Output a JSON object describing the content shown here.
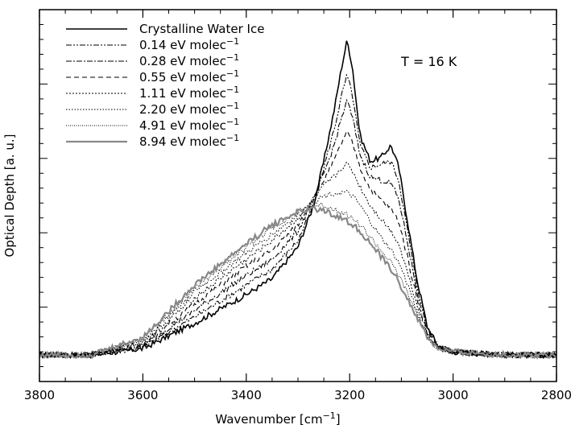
{
  "chart_data": {
    "type": "line",
    "title": "",
    "xlabel": "Wavenumber [cm",
    "xlabel_sup": "−1",
    "xlabel_suffix": "]",
    "ylabel": "Optical Depth [a. u.]",
    "xlim": [
      3800,
      2800
    ],
    "ylim": [
      0,
      1
    ],
    "x_inverted": true,
    "x_ticks": [
      3800,
      3600,
      3400,
      3200,
      3000,
      2800
    ],
    "y_ticks_labeled": false,
    "grid": false,
    "legend_position": "top-left",
    "annotation": "T = 16 K",
    "series": [
      {
        "name": "Crystalline Water Ice",
        "name_sup": "",
        "dash": "solid",
        "color": "#000000",
        "width": 1.6,
        "points": [
          [
            3800,
            0.01
          ],
          [
            3700,
            0.01
          ],
          [
            3600,
            0.03
          ],
          [
            3500,
            0.11
          ],
          [
            3400,
            0.2
          ],
          [
            3350,
            0.25
          ],
          [
            3300,
            0.35
          ],
          [
            3270,
            0.48
          ],
          [
            3250,
            0.62
          ],
          [
            3230,
            0.78
          ],
          [
            3215,
            0.92
          ],
          [
            3205,
            1.0
          ],
          [
            3195,
            0.92
          ],
          [
            3180,
            0.7
          ],
          [
            3160,
            0.62
          ],
          [
            3140,
            0.63
          ],
          [
            3120,
            0.67
          ],
          [
            3105,
            0.6
          ],
          [
            3090,
            0.45
          ],
          [
            3070,
            0.25
          ],
          [
            3050,
            0.1
          ],
          [
            3030,
            0.04
          ],
          [
            3000,
            0.02
          ],
          [
            2900,
            0.01
          ],
          [
            2800,
            0.01
          ]
        ]
      },
      {
        "name": "0.14 eV molec",
        "name_sup": "−1",
        "dash": "7,2,2,2,2,2",
        "color": "#000000",
        "width": 1.1,
        "points": [
          [
            3800,
            0.01
          ],
          [
            3700,
            0.01
          ],
          [
            3600,
            0.035
          ],
          [
            3500,
            0.13
          ],
          [
            3400,
            0.23
          ],
          [
            3350,
            0.28
          ],
          [
            3300,
            0.37
          ],
          [
            3270,
            0.48
          ],
          [
            3250,
            0.6
          ],
          [
            3230,
            0.72
          ],
          [
            3215,
            0.83
          ],
          [
            3205,
            0.89
          ],
          [
            3195,
            0.83
          ],
          [
            3180,
            0.67
          ],
          [
            3160,
            0.6
          ],
          [
            3140,
            0.61
          ],
          [
            3120,
            0.62
          ],
          [
            3105,
            0.56
          ],
          [
            3090,
            0.42
          ],
          [
            3070,
            0.23
          ],
          [
            3050,
            0.1
          ],
          [
            3030,
            0.04
          ],
          [
            3000,
            0.02
          ],
          [
            2900,
            0.01
          ],
          [
            2800,
            0.01
          ]
        ]
      },
      {
        "name": "0.28 eV molec",
        "name_sup": "−1",
        "dash": "7,2,2,2",
        "color": "#000000",
        "width": 1.1,
        "points": [
          [
            3800,
            0.01
          ],
          [
            3700,
            0.01
          ],
          [
            3600,
            0.04
          ],
          [
            3500,
            0.15
          ],
          [
            3400,
            0.26
          ],
          [
            3350,
            0.31
          ],
          [
            3300,
            0.4
          ],
          [
            3270,
            0.5
          ],
          [
            3250,
            0.58
          ],
          [
            3230,
            0.67
          ],
          [
            3215,
            0.76
          ],
          [
            3205,
            0.81
          ],
          [
            3195,
            0.76
          ],
          [
            3180,
            0.64
          ],
          [
            3160,
            0.57
          ],
          [
            3140,
            0.56
          ],
          [
            3120,
            0.55
          ],
          [
            3105,
            0.5
          ],
          [
            3090,
            0.38
          ],
          [
            3070,
            0.21
          ],
          [
            3050,
            0.09
          ],
          [
            3030,
            0.04
          ],
          [
            3000,
            0.02
          ],
          [
            2900,
            0.01
          ],
          [
            2800,
            0.01
          ]
        ]
      },
      {
        "name": "0.55 eV molec",
        "name_sup": "−1",
        "dash": "6,4",
        "color": "#000000",
        "width": 1.1,
        "points": [
          [
            3800,
            0.01
          ],
          [
            3700,
            0.01
          ],
          [
            3600,
            0.045
          ],
          [
            3500,
            0.17
          ],
          [
            3400,
            0.29
          ],
          [
            3350,
            0.34
          ],
          [
            3300,
            0.42
          ],
          [
            3270,
            0.5
          ],
          [
            3250,
            0.56
          ],
          [
            3230,
            0.62
          ],
          [
            3215,
            0.68
          ],
          [
            3205,
            0.71
          ],
          [
            3195,
            0.68
          ],
          [
            3180,
            0.6
          ],
          [
            3160,
            0.53
          ],
          [
            3140,
            0.5
          ],
          [
            3120,
            0.47
          ],
          [
            3105,
            0.43
          ],
          [
            3090,
            0.33
          ],
          [
            3070,
            0.19
          ],
          [
            3050,
            0.08
          ],
          [
            3030,
            0.035
          ],
          [
            3000,
            0.02
          ],
          [
            2900,
            0.01
          ],
          [
            2800,
            0.01
          ]
        ]
      },
      {
        "name": "1.11 eV molec",
        "name_sup": "−1",
        "dash": "2,2",
        "color": "#000000",
        "width": 1.0,
        "points": [
          [
            3800,
            0.01
          ],
          [
            3700,
            0.01
          ],
          [
            3600,
            0.05
          ],
          [
            3500,
            0.19
          ],
          [
            3400,
            0.31
          ],
          [
            3350,
            0.37
          ],
          [
            3300,
            0.44
          ],
          [
            3270,
            0.5
          ],
          [
            3250,
            0.54
          ],
          [
            3230,
            0.57
          ],
          [
            3215,
            0.6
          ],
          [
            3205,
            0.61
          ],
          [
            3195,
            0.59
          ],
          [
            3180,
            0.54
          ],
          [
            3160,
            0.48
          ],
          [
            3140,
            0.44
          ],
          [
            3120,
            0.4
          ],
          [
            3105,
            0.36
          ],
          [
            3090,
            0.28
          ],
          [
            3070,
            0.17
          ],
          [
            3050,
            0.08
          ],
          [
            3030,
            0.035
          ],
          [
            3000,
            0.02
          ],
          [
            2900,
            0.01
          ],
          [
            2800,
            0.01
          ]
        ]
      },
      {
        "name": "2.20 eV molec",
        "name_sup": "−1",
        "dash": "1.5,2",
        "color": "#000000",
        "width": 1.0,
        "points": [
          [
            3800,
            0.01
          ],
          [
            3700,
            0.01
          ],
          [
            3600,
            0.055
          ],
          [
            3500,
            0.21
          ],
          [
            3400,
            0.33
          ],
          [
            3350,
            0.39
          ],
          [
            3300,
            0.45
          ],
          [
            3270,
            0.49
          ],
          [
            3250,
            0.51
          ],
          [
            3230,
            0.52
          ],
          [
            3215,
            0.52
          ],
          [
            3205,
            0.52
          ],
          [
            3195,
            0.51
          ],
          [
            3180,
            0.48
          ],
          [
            3160,
            0.43
          ],
          [
            3140,
            0.38
          ],
          [
            3120,
            0.34
          ],
          [
            3105,
            0.3
          ],
          [
            3090,
            0.24
          ],
          [
            3070,
            0.15
          ],
          [
            3050,
            0.07
          ],
          [
            3030,
            0.03
          ],
          [
            3000,
            0.02
          ],
          [
            2900,
            0.01
          ],
          [
            2800,
            0.01
          ]
        ]
      },
      {
        "name": "4.91 eV molec",
        "name_sup": "−1",
        "dash": "1,1.5",
        "color": "#000000",
        "width": 1.0,
        "points": [
          [
            3800,
            0.01
          ],
          [
            3700,
            0.01
          ],
          [
            3600,
            0.06
          ],
          [
            3500,
            0.22
          ],
          [
            3400,
            0.35
          ],
          [
            3350,
            0.41
          ],
          [
            3300,
            0.46
          ],
          [
            3270,
            0.48
          ],
          [
            3250,
            0.48
          ],
          [
            3230,
            0.47
          ],
          [
            3215,
            0.46
          ],
          [
            3205,
            0.45
          ],
          [
            3195,
            0.44
          ],
          [
            3180,
            0.42
          ],
          [
            3160,
            0.38
          ],
          [
            3140,
            0.34
          ],
          [
            3120,
            0.3
          ],
          [
            3105,
            0.26
          ],
          [
            3090,
            0.21
          ],
          [
            3070,
            0.14
          ],
          [
            3050,
            0.07
          ],
          [
            3030,
            0.03
          ],
          [
            3000,
            0.02
          ],
          [
            2900,
            0.01
          ],
          [
            2800,
            0.01
          ]
        ]
      },
      {
        "name": "8.94 eV molec",
        "name_sup": "−1",
        "dash": "solid",
        "color": "#888888",
        "width": 2.2,
        "points": [
          [
            3800,
            0.01
          ],
          [
            3700,
            0.01
          ],
          [
            3600,
            0.065
          ],
          [
            3500,
            0.23
          ],
          [
            3400,
            0.36
          ],
          [
            3350,
            0.42
          ],
          [
            3300,
            0.46
          ],
          [
            3270,
            0.47
          ],
          [
            3250,
            0.465
          ],
          [
            3230,
            0.45
          ],
          [
            3215,
            0.44
          ],
          [
            3205,
            0.43
          ],
          [
            3195,
            0.42
          ],
          [
            3180,
            0.4
          ],
          [
            3160,
            0.36
          ],
          [
            3140,
            0.32
          ],
          [
            3120,
            0.28
          ],
          [
            3105,
            0.24
          ],
          [
            3090,
            0.19
          ],
          [
            3070,
            0.13
          ],
          [
            3050,
            0.065
          ],
          [
            3030,
            0.03
          ],
          [
            3000,
            0.02
          ],
          [
            2900,
            0.01
          ],
          [
            2800,
            0.01
          ]
        ]
      }
    ]
  }
}
